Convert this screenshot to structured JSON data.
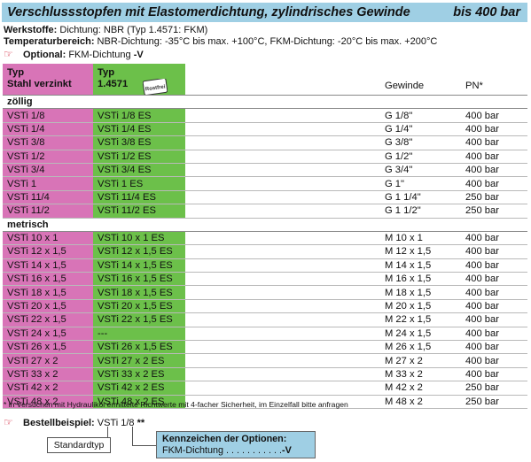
{
  "title": "Verschlussstopfen mit Elastomerdichtung, zylindrisches Gewinde",
  "pressure": "bis 400 bar",
  "specs": {
    "werkstoffe_label": "Werkstoffe:",
    "werkstoffe": " Dichtung: NBR (Typ 1.4571: FKM)",
    "temp_label": "Temperaturbereich:",
    "temp": " NBR-Dichtung: -35°C bis max. +100°C, FKM-Dichtung: -20°C bis max. +200°C",
    "optional_label": "Optional:",
    "optional": " FKM-Dichtung ",
    "optional_code": "-V"
  },
  "header": {
    "col1_line1": "Typ",
    "col1_line2": "Stahl verzinkt",
    "col2_line1": "Typ",
    "col2_line2": "1.4571",
    "stamp_text": "Rostfrei",
    "col4": "Gewinde",
    "col5": "PN*"
  },
  "sections": [
    {
      "label": "zöllig",
      "rows": [
        [
          "VSTi 1/8",
          "VSTi 1/8 ES",
          "G 1/8\"",
          "400 bar"
        ],
        [
          "VSTi 1/4",
          "VSTi 1/4 ES",
          "G 1/4\"",
          "400 bar"
        ],
        [
          "VSTi 3/8",
          "VSTi 3/8 ES",
          "G 3/8\"",
          "400 bar"
        ],
        [
          "VSTi 1/2",
          "VSTi 1/2 ES",
          "G 1/2\"",
          "400 bar"
        ],
        [
          "VSTi 3/4",
          "VSTi 3/4 ES",
          "G 3/4\"",
          "400 bar"
        ],
        [
          "VSTi 1",
          "VSTi 1 ES",
          "G 1\"",
          "400 bar"
        ],
        [
          "VSTi 11/4",
          "VSTi 11/4 ES",
          "G 1 1/4\"",
          "250 bar"
        ],
        [
          "VSTi 11/2",
          "VSTi 11/2 ES",
          "G 1 1/2\"",
          "250 bar"
        ]
      ]
    },
    {
      "label": "metrisch",
      "rows": [
        [
          "VSTi 10 x 1",
          "VSTi 10 x 1 ES",
          "M 10 x 1",
          "400 bar"
        ],
        [
          "VSTi 12 x 1,5",
          "VSTi 12 x 1,5 ES",
          "M 12 x 1,5",
          "400 bar"
        ],
        [
          "VSTi 14 x 1,5",
          "VSTi 14 x 1,5 ES",
          "M 14 x 1,5",
          "400 bar"
        ],
        [
          "VSTi 16 x 1,5",
          "VSTi 16 x 1,5 ES",
          "M 16 x 1,5",
          "400 bar"
        ],
        [
          "VSTi 18 x 1,5",
          "VSTi 18 x 1,5 ES",
          "M 18 x 1,5",
          "400 bar"
        ],
        [
          "VSTi 20 x 1,5",
          "VSTi 20 x 1,5 ES",
          "M 20 x 1,5",
          "400 bar"
        ],
        [
          "VSTi 22 x 1,5",
          "VSTi 22 x 1,5 ES",
          "M 22 x 1,5",
          "400 bar"
        ],
        [
          "VSTi 24 x 1,5",
          "---",
          "M 24 x 1,5",
          "400 bar"
        ],
        [
          "VSTi 26 x 1,5",
          "VSTi 26 x 1,5 ES",
          "M 26 x 1,5",
          "400 bar"
        ],
        [
          "VSTi 27 x 2",
          "VSTi 27 x 2 ES",
          "M 27 x 2",
          "400 bar"
        ],
        [
          "VSTi 33 x 2",
          "VSTi 33 x 2 ES",
          "M 33 x 2",
          "400 bar"
        ],
        [
          "VSTi 42 x 2",
          "VSTi 42 x 2 ES",
          "M 42 x 2",
          "250 bar"
        ],
        [
          "VSTi 48 x 2",
          "VSTi 48 x 2 ES",
          "M 48 x 2",
          "250 bar"
        ]
      ]
    }
  ],
  "footnote": "* in Versuchen mit Hydrauliköl ermittelte Richtwerte mit 4-facher Sicherheit, im Einzelfall bitte anfragen",
  "order": {
    "label": "Bestellbeispiel:",
    "example": " VSTi 1/8 ",
    "stars": "**",
    "standard": "Standardtyp",
    "options_title": "Kennzeichen der Optionen:",
    "options_line": "FKM-Dichtung . . . . . . . . . . .",
    "options_code": "-V"
  },
  "colors": {
    "title_bg": "#9fcfe4",
    "steel_col": "#d874b7",
    "stainless_col": "#6cc04a",
    "hand_icon": "#d0102b"
  }
}
